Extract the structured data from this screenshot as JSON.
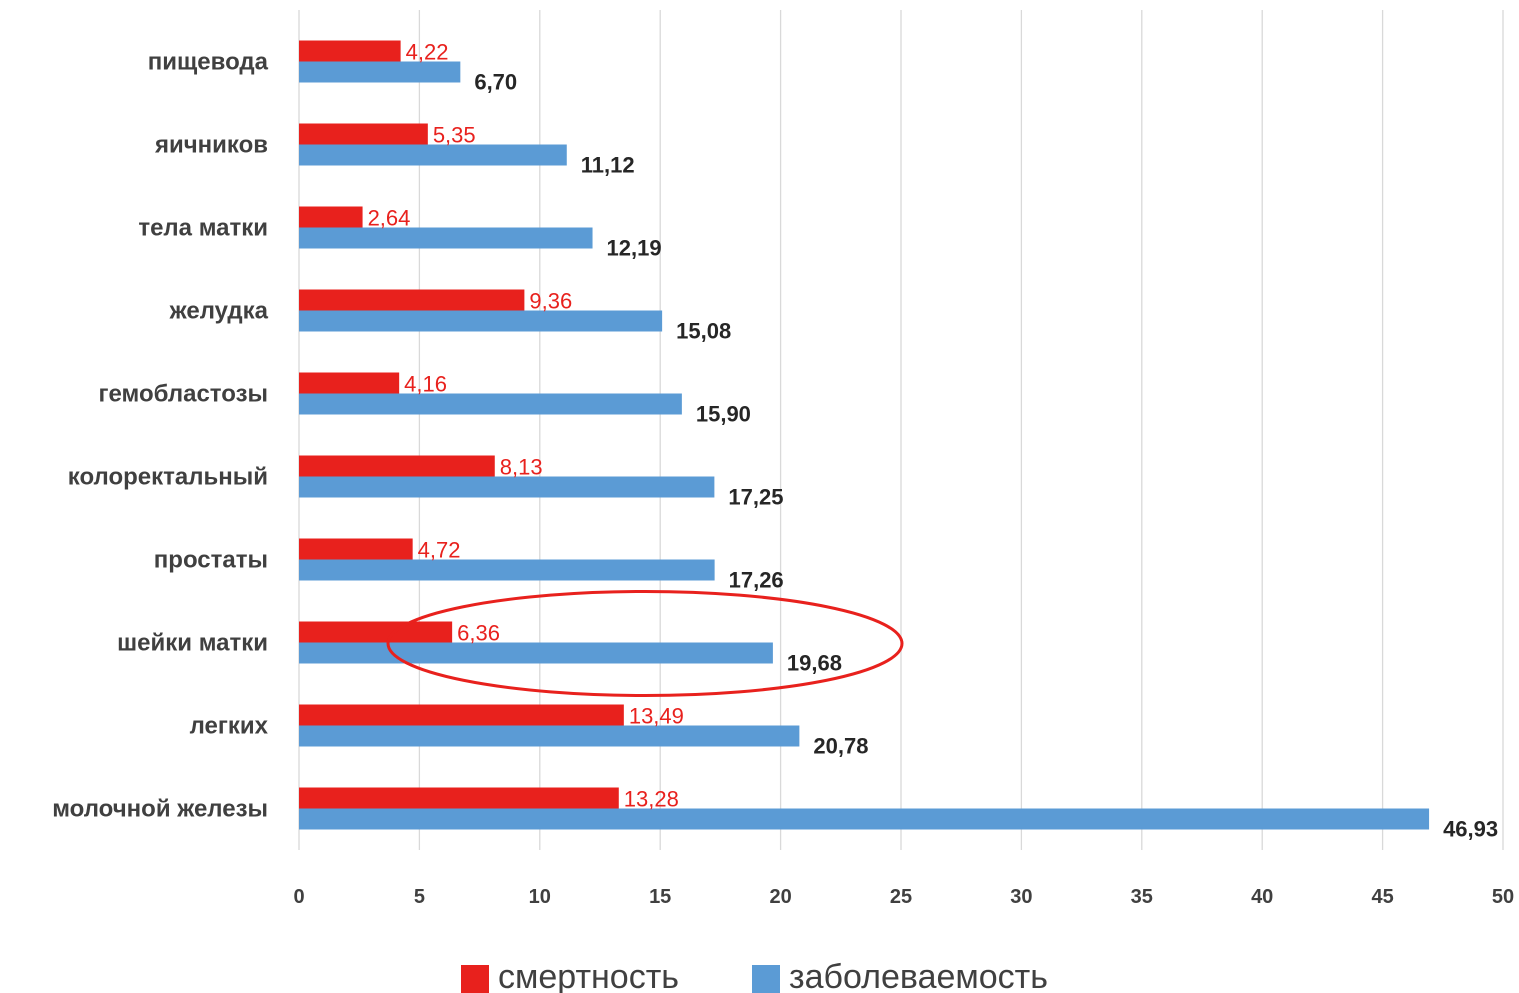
{
  "chart_data": {
    "type": "bar",
    "orientation": "horizontal",
    "categories": [
      "пищевода",
      "яичников",
      "тела матки",
      "желудка",
      "гемобластозы",
      "колоректальный",
      "простаты",
      "шейки матки",
      "легких",
      "молочной железы"
    ],
    "series": [
      {
        "name": "смертность",
        "values": [
          4.22,
          5.35,
          2.64,
          9.36,
          4.16,
          8.13,
          4.72,
          6.36,
          13.49,
          13.28
        ],
        "labels": [
          "4,22",
          "5,35",
          "2,64",
          "9,36",
          "4,16",
          "8,13",
          "4,72",
          "6,36",
          "13,49",
          "13,28"
        ],
        "color": "#e8211d"
      },
      {
        "name": "заболеваемость",
        "values": [
          6.7,
          11.12,
          12.19,
          15.08,
          15.9,
          17.25,
          17.26,
          19.68,
          20.78,
          46.93
        ],
        "labels": [
          "6,70",
          "11,12",
          "12,19",
          "15,08",
          "15,90",
          "17,25",
          "17,26",
          "19,68",
          "20,78",
          "46,93"
        ],
        "color": "#5b9bd5"
      }
    ],
    "xlim": [
      0,
      50
    ],
    "xticks": [
      "0",
      "5",
      "10",
      "15",
      "20",
      "25",
      "30",
      "35",
      "40",
      "45",
      "50"
    ],
    "grid": true,
    "legend": "bottom",
    "highlight": {
      "shape": "ellipse",
      "category": "шейки матки",
      "color": "#e8211d"
    }
  }
}
